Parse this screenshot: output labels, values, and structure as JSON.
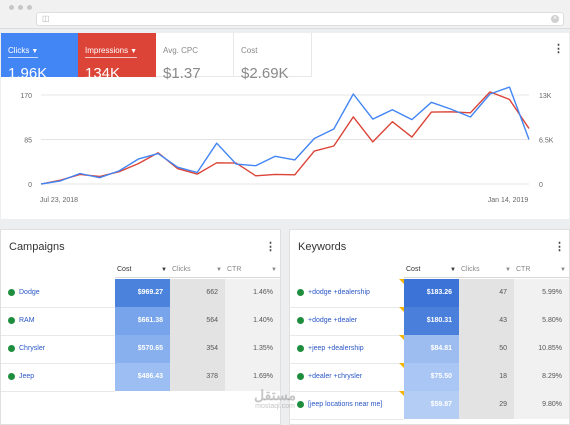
{
  "browser": {
    "url_icon": "page-icon",
    "close_icon": "close-icon"
  },
  "metrics": [
    {
      "label": "Clicks",
      "value": "1.96K",
      "color": "#4285f4",
      "has_dropdown": true
    },
    {
      "label": "Impressions",
      "value": "134K",
      "color": "#db4437",
      "has_dropdown": true
    },
    {
      "label": "Avg. CPC",
      "value": "$1.37"
    },
    {
      "label": "Cost",
      "value": "$2.69K"
    }
  ],
  "chart_data": {
    "type": "line",
    "x_labels": [
      "Jul 23, 2018",
      "Jan 14, 2019"
    ],
    "y_left": {
      "ticks": [
        "170",
        "85",
        "0"
      ],
      "range": [
        0,
        170
      ]
    },
    "y_right": {
      "ticks": [
        "13K",
        "6.5K",
        "0"
      ],
      "range": [
        0,
        13000
      ]
    },
    "grid": true,
    "series": [
      {
        "axis": "left",
        "color": "#4285f4",
        "values": [
          0,
          6,
          20,
          12,
          25,
          48,
          58,
          32,
          22,
          78,
          38,
          35,
          53,
          46,
          87,
          105,
          172,
          124,
          142,
          123,
          156,
          143,
          128,
          172,
          185,
          85
        ]
      },
      {
        "axis": "right",
        "color": "#db4437",
        "values": [
          0,
          550,
          1400,
          1100,
          1800,
          3000,
          4550,
          2250,
          1450,
          3100,
          3050,
          1200,
          1400,
          1350,
          4800,
          5550,
          9800,
          6150,
          9100,
          6850,
          10500,
          10550,
          10400,
          13450,
          12350,
          8100
        ]
      }
    ]
  },
  "campaigns": {
    "title": "Campaigns",
    "columns": [
      "Cost",
      "Clicks",
      "CTR"
    ],
    "rows": [
      {
        "name": "Dodge",
        "cost": "$969.27",
        "clicks": "662",
        "ctr": "1.46%",
        "shade": "#4b83dc"
      },
      {
        "name": "RAM",
        "cost": "$661.38",
        "clicks": "564",
        "ctr": "1.40%",
        "shade": "#77a4ea"
      },
      {
        "name": "Chrysler",
        "cost": "$570.65",
        "clicks": "354",
        "ctr": "1.35%",
        "shade": "#88b0ee"
      },
      {
        "name": "Jeep",
        "cost": "$486.43",
        "clicks": "378",
        "ctr": "1.69%",
        "shade": "#9cbef2"
      }
    ]
  },
  "keywords": {
    "title": "Keywords",
    "columns": [
      "Cost",
      "Clicks",
      "CTR"
    ],
    "rows": [
      {
        "name": "+dodge +dealership",
        "cost": "$183.26",
        "clicks": "47",
        "ctr": "5.99%",
        "shade": "#3b74d6"
      },
      {
        "name": "+dodge +dealer",
        "cost": "$180.31",
        "clicks": "43",
        "ctr": "5.80%",
        "shade": "#4a80dc"
      },
      {
        "name": "+jeep +dealership",
        "cost": "$84.81",
        "clicks": "50",
        "ctr": "10.85%",
        "shade": "#9dbdf1"
      },
      {
        "name": "+dealer +chrysler",
        "cost": "$75.50",
        "clicks": "18",
        "ctr": "8.29%",
        "shade": "#a9c6f4"
      },
      {
        "name": "[jeep locations near me]",
        "cost": "$59.87",
        "clicks": "29",
        "ctr": "9.80%",
        "shade": "#b4cdf5"
      }
    ]
  },
  "watermark": {
    "arabic": "مستقل",
    "latin": "mostaql.com"
  }
}
